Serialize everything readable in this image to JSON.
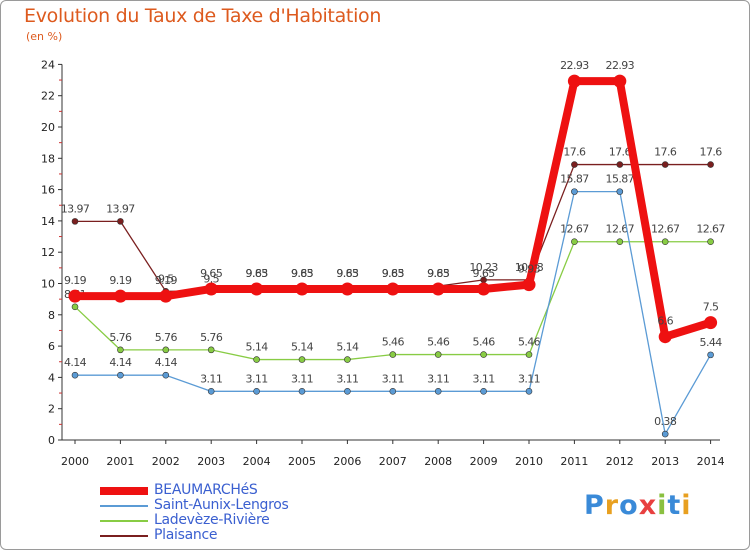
{
  "title": "Evolution du Taux de Taxe d'Habitation",
  "subtitle": "(en %)",
  "brand": {
    "text": "Proxiti",
    "letter_colors": [
      "#3a8ad8",
      "#e8a020",
      "#3a8ad8",
      "#e84040",
      "#8ac040",
      "#3a8ad8",
      "#e8a020"
    ]
  },
  "chart_data": {
    "type": "line",
    "x": [
      "2000",
      "2001",
      "2002",
      "2003",
      "2004",
      "2005",
      "2006",
      "2007",
      "2008",
      "2009",
      "2010",
      "2011",
      "2012",
      "2013",
      "2014"
    ],
    "ylim": [
      0,
      24
    ],
    "yticks": [
      0,
      2,
      4,
      6,
      8,
      10,
      12,
      14,
      16,
      18,
      20,
      22,
      24
    ],
    "grid": false,
    "legend_position": "bottom-left",
    "series": [
      {
        "name": "Plaisance",
        "color": "#7a1f1f",
        "values": [
          13.97,
          13.97,
          9.5,
          9.5,
          9.83,
          9.83,
          9.83,
          9.83,
          9.83,
          10.23,
          10.23,
          17.6,
          17.6,
          17.6,
          17.6
        ],
        "labels": [
          "13.97",
          "13.97",
          "9.5",
          "9.5",
          "9.83",
          "9.83",
          "9.83",
          "9.83",
          "9.83",
          "10.23",
          "10.23",
          "17.6",
          "17.6",
          "17.6",
          "17.6"
        ]
      },
      {
        "name": "Ladevèze-Rivière",
        "color": "#88cc44",
        "values": [
          8.51,
          5.76,
          5.76,
          5.76,
          5.14,
          5.14,
          5.14,
          5.46,
          5.46,
          5.46,
          5.46,
          12.67,
          12.67,
          12.67,
          12.67
        ],
        "labels": [
          "8.51",
          "5.76",
          "5.76",
          "5.76",
          "5.14",
          "5.14",
          "5.14",
          "5.46",
          "5.46",
          "5.46",
          "5.46",
          "12.67",
          "12.67",
          "12.67",
          "12.67"
        ]
      },
      {
        "name": "Saint-Aunix-Lengros",
        "color": "#5b9bd5",
        "values": [
          4.14,
          4.14,
          4.14,
          3.11,
          3.11,
          3.11,
          3.11,
          3.11,
          3.11,
          3.11,
          3.11,
          15.87,
          15.87,
          0.38,
          5.44
        ],
        "labels": [
          "4.14",
          "4.14",
          "4.14",
          "3.11",
          "3.11",
          "3.11",
          "3.11",
          "3.11",
          "3.11",
          "3.11",
          "3.11",
          "15.87",
          "15.87",
          "0.38",
          "5.44"
        ]
      },
      {
        "name": "BEAUMARCHéS",
        "color": "#ee1111",
        "values": [
          9.19,
          9.19,
          9.19,
          9.65,
          9.65,
          9.65,
          9.65,
          9.65,
          9.65,
          9.65,
          9.93,
          22.93,
          22.93,
          6.6,
          7.5
        ],
        "labels": [
          "9.19",
          "9.19",
          "9.19",
          "9.65",
          "9.65",
          "9.65",
          "9.65",
          "9.65",
          "9.65",
          "9.65",
          "9.93",
          "22.93",
          "22.93",
          "6.6",
          "7.5"
        ]
      }
    ],
    "legend_order": [
      "BEAUMARCHéS",
      "Saint-Aunix-Lengros",
      "Ladevèze-Rivière",
      "Plaisance"
    ]
  }
}
